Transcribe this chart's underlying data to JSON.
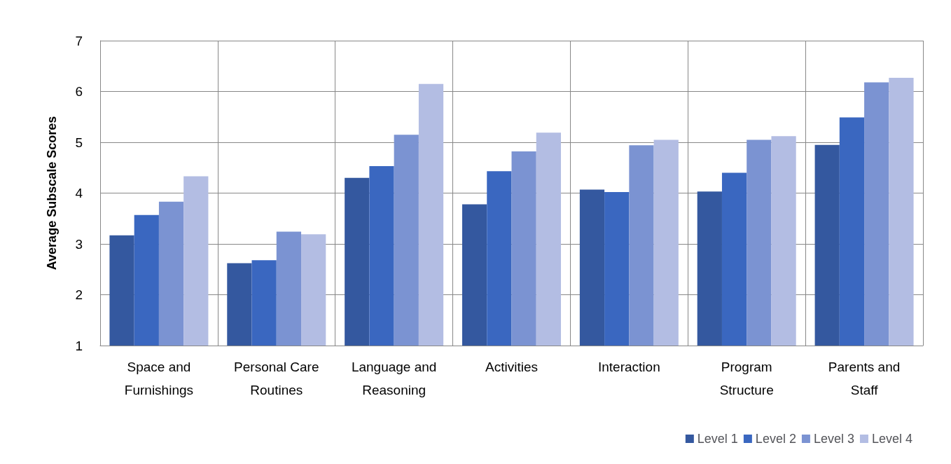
{
  "chart_data": {
    "type": "bar",
    "ylabel": "Average Subscale Scores",
    "categories": [
      "Space and\nFurnishings",
      "Personal Care\nRoutines",
      "Language and\nReasoning",
      "Activities",
      "Interaction",
      "Program\nStructure",
      "Parents and\nStaff"
    ],
    "series": [
      {
        "name": "Level 1",
        "color": "#34589f",
        "values": [
          3.17,
          2.62,
          4.3,
          3.78,
          4.07,
          4.03,
          4.95
        ]
      },
      {
        "name": "Level 2",
        "color": "#3a67c0",
        "values": [
          3.57,
          2.68,
          4.53,
          4.43,
          4.02,
          4.4,
          5.49
        ]
      },
      {
        "name": "Level 3",
        "color": "#7b93d2",
        "values": [
          3.83,
          3.24,
          5.15,
          4.82,
          4.94,
          5.05,
          6.18
        ]
      },
      {
        "name": "Level 4",
        "color": "#b3bde3",
        "values": [
          4.33,
          3.19,
          6.15,
          5.19,
          5.05,
          5.12,
          6.27
        ]
      }
    ],
    "ylim": [
      1,
      7
    ],
    "yticks": [
      1,
      2,
      3,
      4,
      5,
      6,
      7
    ],
    "grid": true,
    "legend": "bottom right"
  }
}
